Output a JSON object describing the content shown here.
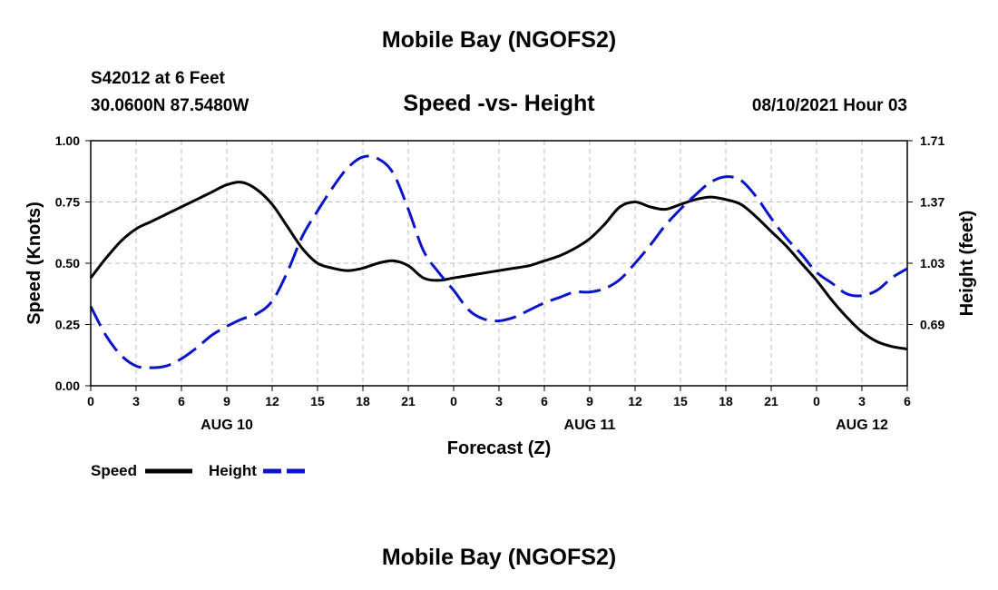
{
  "header": {
    "title": "Mobile Bay (NGOFS2)",
    "station": "S42012 at 6 Feet",
    "coords": "30.0600N  87.5480W",
    "datetime": "08/10/2021 Hour 03"
  },
  "footer": {
    "title": "Mobile Bay (NGOFS2)"
  },
  "legend": {
    "speed_label": "Speed",
    "height_label": "Height"
  },
  "chart_data": {
    "type": "line",
    "title": "Speed -vs- Height",
    "xlabel": "Forecast (Z)",
    "ylabel": "Speed (Knots)",
    "y2label": "Height (feet)",
    "x_tick_labels": [
      "0",
      "3",
      "6",
      "9",
      "12",
      "15",
      "18",
      "21",
      "0",
      "3",
      "6",
      "9",
      "12",
      "15",
      "18",
      "21",
      "0",
      "3",
      "6"
    ],
    "date_labels": [
      {
        "label": "AUG 10",
        "tick_index": 3
      },
      {
        "label": "AUG 11",
        "tick_index": 11
      },
      {
        "label": "AUG 12",
        "tick_index": 17
      }
    ],
    "ylim": [
      0,
      1.0
    ],
    "y_ticks": [
      "0.00",
      "0.25",
      "0.50",
      "0.75",
      "1.00"
    ],
    "y2lim": [
      0.35,
      1.71
    ],
    "y2_ticks": [
      "0.69",
      "1.03",
      "1.37",
      "1.71"
    ],
    "grid": true,
    "legend_position": "bottom-left",
    "x": [
      0,
      1,
      2,
      3,
      4,
      5,
      6,
      7,
      8,
      9,
      10,
      11,
      12,
      13,
      14,
      15,
      16,
      17,
      18,
      19,
      20,
      21,
      22,
      23,
      24,
      25,
      26,
      27,
      28,
      29,
      30,
      31,
      32,
      33,
      34,
      35,
      36,
      37,
      38,
      39,
      40,
      41,
      42,
      43,
      44,
      45,
      46,
      47,
      48,
      49,
      50,
      51,
      52,
      53,
      54
    ],
    "series": [
      {
        "name": "Speed",
        "axis": "left",
        "color": "#000000",
        "style": "solid",
        "values": [
          0.44,
          0.52,
          0.59,
          0.64,
          0.67,
          0.7,
          0.73,
          0.76,
          0.79,
          0.82,
          0.83,
          0.8,
          0.74,
          0.65,
          0.56,
          0.5,
          0.48,
          0.47,
          0.48,
          0.5,
          0.51,
          0.49,
          0.44,
          0.43,
          0.44,
          0.45,
          0.46,
          0.47,
          0.48,
          0.49,
          0.51,
          0.53,
          0.56,
          0.6,
          0.66,
          0.73,
          0.75,
          0.73,
          0.72,
          0.74,
          0.76,
          0.77,
          0.76,
          0.74,
          0.69,
          0.63,
          0.57,
          0.5,
          0.43,
          0.35,
          0.28,
          0.22,
          0.18,
          0.16,
          0.15
        ]
      },
      {
        "name": "Height",
        "axis": "right",
        "color": "#0a14c8",
        "style": "dashed",
        "values": [
          0.79,
          0.63,
          0.52,
          0.46,
          0.45,
          0.46,
          0.5,
          0.56,
          0.63,
          0.68,
          0.72,
          0.75,
          0.82,
          0.98,
          1.18,
          1.32,
          1.45,
          1.56,
          1.62,
          1.61,
          1.53,
          1.33,
          1.1,
          0.98,
          0.88,
          0.77,
          0.72,
          0.71,
          0.73,
          0.77,
          0.81,
          0.84,
          0.87,
          0.87,
          0.89,
          0.94,
          1.03,
          1.13,
          1.24,
          1.33,
          1.41,
          1.48,
          1.51,
          1.49,
          1.4,
          1.28,
          1.17,
          1.08,
          0.98,
          0.92,
          0.86,
          0.85,
          0.88,
          0.95,
          1.0
        ]
      }
    ]
  }
}
